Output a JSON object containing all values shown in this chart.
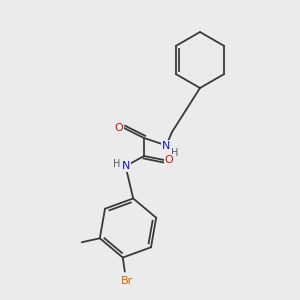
{
  "background_color": "#ebebeb",
  "bond_color": "#3a3a3a",
  "atom_colors": {
    "N": "#1414cc",
    "O": "#cc1414",
    "Br": "#cc6600",
    "C": "#3a3a3a",
    "H": "#5a5a5a"
  },
  "font_size_atoms": 8.0,
  "font_size_H": 7.0,
  "line_width": 1.3,
  "figsize": [
    3.0,
    3.0
  ],
  "dpi": 100
}
